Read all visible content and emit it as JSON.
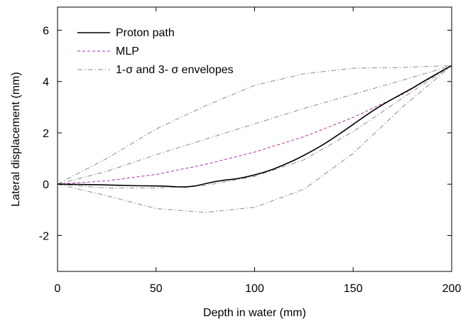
{
  "chart_data": {
    "type": "line",
    "xlabel": "Depth in water (mm)",
    "ylabel": "Lateral displacement (mm)",
    "xlim": [
      0,
      200
    ],
    "ylim": [
      -3.4,
      6.9
    ],
    "xticks": [
      0,
      50,
      100,
      150,
      200
    ],
    "yticks": [
      -2,
      0,
      2,
      4,
      6
    ],
    "grid": false,
    "legend_position": "top-left",
    "series": [
      {
        "name": "Proton path",
        "color": "#000000",
        "style": "solid",
        "x": [
          0,
          10,
          20,
          30,
          40,
          50,
          55,
          60,
          65,
          70,
          75,
          80,
          85,
          90,
          95,
          100,
          105,
          110,
          115,
          120,
          125,
          130,
          135,
          140,
          145,
          150,
          155,
          160,
          165,
          170,
          175,
          180,
          185,
          190,
          195,
          200
        ],
        "y": [
          0,
          -0.01,
          -0.02,
          -0.04,
          -0.06,
          -0.07,
          -0.08,
          -0.1,
          -0.11,
          -0.07,
          0.02,
          0.1,
          0.16,
          0.2,
          0.27,
          0.36,
          0.47,
          0.6,
          0.76,
          0.93,
          1.12,
          1.33,
          1.55,
          1.8,
          2.06,
          2.33,
          2.6,
          2.86,
          3.1,
          3.32,
          3.53,
          3.74,
          3.97,
          4.19,
          4.41,
          4.62
        ]
      },
      {
        "name": "MLP",
        "color": "#b52aa8",
        "style": "dashed",
        "x": [
          0,
          25,
          50,
          75,
          100,
          125,
          150,
          175,
          200
        ],
        "y": [
          0,
          0.13,
          0.38,
          0.77,
          1.25,
          1.85,
          2.6,
          3.5,
          4.62
        ]
      },
      {
        "name": "1-σ and 3- σ envelopes",
        "color": "#8c8c8c",
        "style": "dashdot",
        "x": [
          0,
          25,
          50,
          75,
          100,
          125,
          150,
          175,
          200
        ],
        "y": [
          0,
          1.0,
          2.15,
          3.05,
          3.85,
          4.3,
          4.52,
          4.55,
          4.62
        ]
      },
      {
        "name": "",
        "color": "#8c8c8c",
        "style": "dashdot",
        "x": [
          0,
          25,
          50,
          75,
          100,
          125,
          150,
          175,
          200
        ],
        "y": [
          0,
          0.5,
          1.15,
          1.75,
          2.35,
          2.95,
          3.5,
          4.05,
          4.62
        ]
      },
      {
        "name": "",
        "color": "#8c8c8c",
        "style": "dashdot",
        "x": [
          0,
          25,
          50,
          75,
          100,
          125,
          150,
          175,
          200
        ],
        "y": [
          0,
          -0.15,
          -0.15,
          -0.05,
          0.3,
          0.95,
          2.05,
          3.35,
          4.62
        ]
      },
      {
        "name": "",
        "color": "#8c8c8c",
        "style": "dashdot",
        "x": [
          0,
          25,
          50,
          75,
          100,
          125,
          150,
          175,
          200
        ],
        "y": [
          0,
          -0.45,
          -0.95,
          -1.1,
          -0.9,
          -0.2,
          1.2,
          3.0,
          4.62
        ]
      }
    ]
  }
}
